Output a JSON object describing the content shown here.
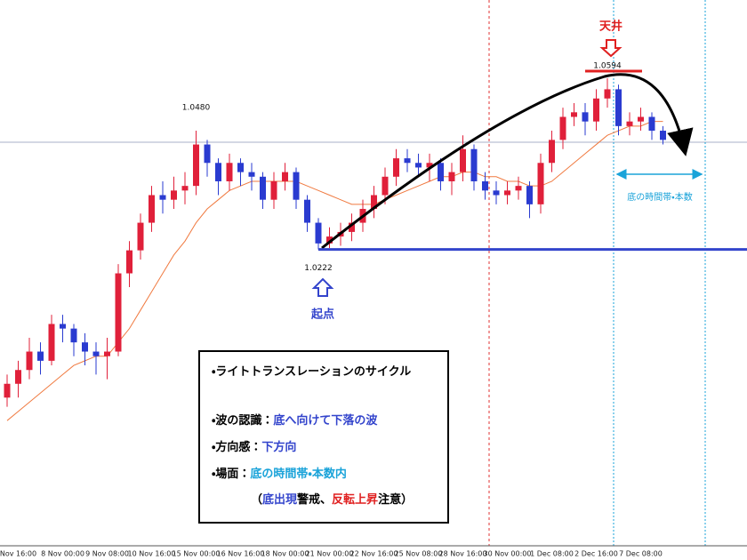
{
  "chart_data": {
    "type": "candlestick",
    "up_color": "#e0203a",
    "down_color": "#2a3bd0",
    "ma_color": "#f07a40",
    "ylim": [
      0.9578,
      1.0764
    ],
    "categories": [
      null,
      "Nov 16:00",
      null,
      null,
      null,
      "8 Nov 00:00",
      null,
      null,
      null,
      "9 Nov 08:00",
      null,
      null,
      null,
      "10 Nov 16:00",
      null,
      null,
      null,
      "15 Nov 00:00",
      null,
      null,
      null,
      "16 Nov 16:00",
      null,
      null,
      null,
      "18 Nov 00:00",
      null,
      null,
      null,
      "21 Nov 00:00",
      null,
      null,
      null,
      "22 Nov 16:00",
      null,
      null,
      null,
      "25 Nov 08:00",
      null,
      null,
      null,
      "28 Nov 16:00",
      null,
      null,
      null,
      "30 Nov 00:00",
      null,
      null,
      null,
      "1 Dec 08:00",
      null,
      null,
      null,
      "2 Dec 16:00",
      null,
      null,
      null,
      "7 Dec 08:00",
      null,
      null
    ],
    "open": [
      0.99,
      0.993,
      0.996,
      1.0,
      0.998,
      1.006,
      1.005,
      1.002,
      1.0,
      0.999,
      1.0,
      1.017,
      1.022,
      1.028,
      1.034,
      1.033,
      1.035,
      1.036,
      1.045,
      1.041,
      1.037,
      1.041,
      1.039,
      1.038,
      1.033,
      1.037,
      1.039,
      1.033,
      1.028,
      1.0235,
      1.025,
      1.026,
      1.028,
      1.031,
      1.034,
      1.038,
      1.042,
      1.041,
      1.04,
      1.041,
      1.037,
      1.039,
      1.044,
      1.037,
      1.035,
      1.034,
      1.035,
      1.036,
      1.032,
      1.041,
      1.046,
      1.051,
      1.052,
      1.05,
      1.055,
      1.057,
      1.049,
      1.05,
      1.051,
      1.048
    ],
    "high": [
      0.995,
      0.998,
      1.003,
      1.002,
      1.008,
      1.008,
      1.006,
      1.004,
      1.002,
      1.003,
      1.019,
      1.024,
      1.03,
      1.036,
      1.037,
      1.038,
      1.039,
      1.048,
      1.046,
      1.042,
      1.043,
      1.042,
      1.041,
      1.039,
      1.039,
      1.041,
      1.04,
      1.034,
      1.029,
      1.027,
      1.028,
      1.03,
      1.033,
      1.036,
      1.04,
      1.044,
      1.044,
      1.043,
      1.043,
      1.042,
      1.041,
      1.047,
      1.045,
      1.039,
      1.037,
      1.037,
      1.038,
      1.037,
      1.043,
      1.048,
      1.053,
      1.054,
      1.054,
      1.057,
      1.0594,
      1.058,
      1.052,
      1.053,
      1.052,
      1.049
    ],
    "low": [
      0.988,
      0.99,
      0.994,
      0.995,
      0.997,
      1.002,
      0.999,
      0.997,
      0.995,
      0.994,
      0.999,
      1.014,
      1.02,
      1.026,
      1.03,
      1.031,
      1.032,
      1.034,
      1.038,
      1.034,
      1.035,
      1.036,
      1.035,
      1.031,
      1.031,
      1.035,
      1.031,
      1.026,
      1.0222,
      1.0225,
      1.023,
      1.024,
      1.026,
      1.029,
      1.032,
      1.036,
      1.039,
      1.038,
      1.037,
      1.035,
      1.034,
      1.037,
      1.035,
      1.033,
      1.032,
      1.032,
      1.033,
      1.029,
      1.03,
      1.039,
      1.044,
      1.049,
      1.047,
      1.048,
      1.053,
      1.047,
      1.047,
      1.048,
      1.046,
      1.045
    ],
    "close": [
      0.993,
      0.996,
      1.0,
      0.998,
      1.006,
      1.005,
      1.002,
      1.0,
      0.999,
      1.0,
      1.017,
      1.022,
      1.028,
      1.034,
      1.033,
      1.035,
      1.036,
      1.045,
      1.041,
      1.037,
      1.041,
      1.039,
      1.038,
      1.033,
      1.037,
      1.039,
      1.033,
      1.028,
      1.0235,
      1.025,
      1.026,
      1.028,
      1.031,
      1.034,
      1.038,
      1.042,
      1.041,
      1.04,
      1.041,
      1.037,
      1.039,
      1.044,
      1.037,
      1.035,
      1.034,
      1.035,
      1.036,
      1.032,
      1.041,
      1.046,
      1.051,
      1.052,
      1.05,
      1.055,
      1.057,
      1.049,
      1.05,
      1.051,
      1.048,
      1.046
    ],
    "ma": {
      "values": [
        0.985,
        0.987,
        0.989,
        0.991,
        0.993,
        0.995,
        0.997,
        0.998,
        0.999,
        0.999,
        1.002,
        1.005,
        1.009,
        1.013,
        1.017,
        1.021,
        1.024,
        1.028,
        1.031,
        1.033,
        1.035,
        1.036,
        1.037,
        1.037,
        1.037,
        1.037,
        1.037,
        1.036,
        1.035,
        1.034,
        1.033,
        1.032,
        1.032,
        1.032,
        1.033,
        1.034,
        1.035,
        1.036,
        1.037,
        1.038,
        1.038,
        1.039,
        1.039,
        1.038,
        1.038,
        1.037,
        1.037,
        1.036,
        1.036,
        1.037,
        1.039,
        1.041,
        1.043,
        1.045,
        1.047,
        1.048,
        1.049,
        1.049,
        1.05,
        1.05
      ]
    },
    "price_labels": [
      {
        "value": 1.048,
        "label": "1.0480"
      },
      {
        "value": 1.0222,
        "label": "1.0222"
      },
      {
        "value": 1.0594,
        "label": "1.0594"
      }
    ],
    "annotations": {
      "top_label": "天井",
      "start_label": "起点",
      "zone_label": "底の時間帯・本数"
    },
    "note": {
      "lines": [
        [
          {
            "text": "・ライトトランスレーションのサイクル",
            "color": "#000000"
          }
        ],
        [
          {
            "text": "・波の認識：",
            "color": "#000000"
          },
          {
            "text": "底へ向けて下落の波",
            "color": "#3344cc"
          }
        ],
        [
          {
            "text": "・方向感：",
            "color": "#000000"
          },
          {
            "text": "下方向",
            "color": "#3344cc"
          }
        ],
        [
          {
            "text": "・場面：",
            "color": "#000000"
          },
          {
            "text": "底の時間帯・本数内",
            "color": "#1aa3d9"
          }
        ],
        [
          {
            "text": "（",
            "color": "#000000"
          },
          {
            "text": "底出現",
            "color": "#3344cc"
          },
          {
            "text": "警戒、",
            "color": "#000000"
          },
          {
            "text": "反転上昇",
            "color": "#e02020"
          },
          {
            "text": "注意）",
            "color": "#000000"
          }
        ]
      ]
    }
  }
}
